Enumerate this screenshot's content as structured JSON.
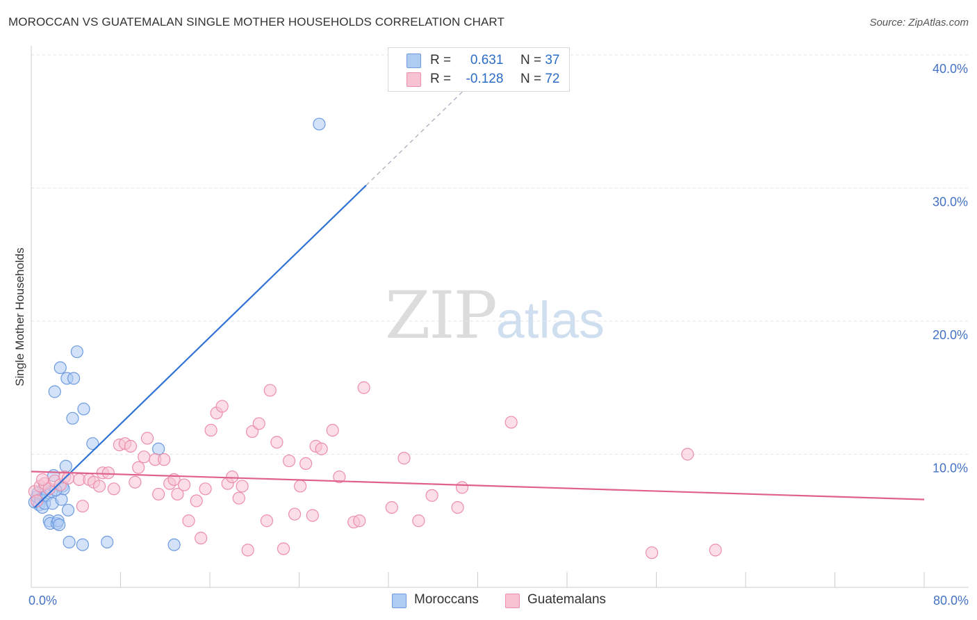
{
  "header": {
    "title": "MOROCCAN VS GUATEMALAN SINGLE MOTHER HOUSEHOLDS CORRELATION CHART",
    "source": "Source: ZipAtlas.com"
  },
  "watermark": {
    "zip": "ZIP",
    "atlas": "atlas"
  },
  "legend": {
    "rows": [
      {
        "r_label": "R =",
        "r_value": "0.631",
        "n_label": "N =",
        "n_value": "37",
        "color": "#aecbf2",
        "border": "#6d9be0"
      },
      {
        "r_label": "R =",
        "r_value": "-0.128",
        "n_label": "N =",
        "n_value": "72",
        "color": "#f7c3d3",
        "border": "#ec8eab"
      }
    ]
  },
  "bottom_legend": {
    "items": [
      {
        "label": "Moroccans",
        "color": "#aecbf2",
        "border": "#6d9be0"
      },
      {
        "label": "Guatemalans",
        "color": "#f7c3d3",
        "border": "#ec8eab"
      }
    ]
  },
  "chart_data": {
    "type": "scatter",
    "title": "MOROCCAN VS GUATEMALAN SINGLE MOTHER HOUSEHOLDS CORRELATION CHART",
    "xlabel": "",
    "ylabel": "Single Mother Households",
    "xlim": [
      0,
      80
    ],
    "ylim": [
      0,
      40
    ],
    "x_tick_labels": [
      {
        "value": 0,
        "label": "0.0%"
      },
      {
        "value": 80,
        "label": "80.0%"
      }
    ],
    "y_tick_labels": [
      {
        "value": 10,
        "label": "10.0%"
      },
      {
        "value": 20,
        "label": "20.0%"
      },
      {
        "value": 30,
        "label": "30.0%"
      },
      {
        "value": 40,
        "label": "40.0%"
      }
    ],
    "grid": true,
    "legend_position": "top-center",
    "series": [
      {
        "name": "Moroccans",
        "color": "#6d9be0",
        "fill": "#aecbf2",
        "trend_color": "#2f72d4",
        "trend": {
          "x0": 0.3,
          "y0": 6.0,
          "x1": 30.0,
          "y1": 30.2,
          "dash_to_x": 40.5
        },
        "points": [
          [
            0.3,
            6.4
          ],
          [
            0.5,
            6.8
          ],
          [
            0.6,
            7.1
          ],
          [
            0.7,
            6.2
          ],
          [
            0.8,
            6.6
          ],
          [
            1.0,
            6.0
          ],
          [
            1.1,
            7.4
          ],
          [
            1.2,
            6.3
          ],
          [
            1.4,
            6.9
          ],
          [
            1.6,
            5.0
          ],
          [
            1.7,
            4.8
          ],
          [
            1.8,
            7.2
          ],
          [
            1.9,
            6.3
          ],
          [
            2.0,
            8.4
          ],
          [
            2.1,
            14.7
          ],
          [
            2.3,
            4.8
          ],
          [
            2.4,
            5.0
          ],
          [
            2.5,
            4.7
          ],
          [
            2.6,
            16.5
          ],
          [
            2.7,
            6.6
          ],
          [
            2.8,
            7.6
          ],
          [
            2.9,
            7.4
          ],
          [
            3.1,
            9.1
          ],
          [
            3.2,
            15.7
          ],
          [
            3.3,
            5.8
          ],
          [
            3.4,
            3.4
          ],
          [
            3.7,
            12.7
          ],
          [
            3.8,
            15.7
          ],
          [
            4.1,
            17.7
          ],
          [
            4.6,
            3.2
          ],
          [
            4.7,
            13.4
          ],
          [
            5.5,
            10.8
          ],
          [
            6.8,
            3.4
          ],
          [
            11.4,
            10.4
          ],
          [
            12.8,
            3.2
          ],
          [
            25.8,
            34.8
          ],
          [
            2.2,
            7.3
          ]
        ]
      },
      {
        "name": "Guatemalans",
        "color": "#ec8eab",
        "fill": "#f7c3d3",
        "trend_color": "#e0608c",
        "trend": {
          "x0": 0,
          "y0": 8.7,
          "x1": 80,
          "y1": 6.6
        },
        "points": [
          [
            0.3,
            7.2
          ],
          [
            0.8,
            7.6
          ],
          [
            1.2,
            7.8
          ],
          [
            1.6,
            7.4
          ],
          [
            2.1,
            8.0
          ],
          [
            2.6,
            7.7
          ],
          [
            3.0,
            8.3
          ],
          [
            3.3,
            8.2
          ],
          [
            4.3,
            8.1
          ],
          [
            4.6,
            6.1
          ],
          [
            5.2,
            8.1
          ],
          [
            5.6,
            7.9
          ],
          [
            6.1,
            7.6
          ],
          [
            6.4,
            8.6
          ],
          [
            6.9,
            8.6
          ],
          [
            7.4,
            7.4
          ],
          [
            7.9,
            10.7
          ],
          [
            8.4,
            10.8
          ],
          [
            8.9,
            10.6
          ],
          [
            9.3,
            7.9
          ],
          [
            9.6,
            9.0
          ],
          [
            10.1,
            9.8
          ],
          [
            10.4,
            11.2
          ],
          [
            11.1,
            9.6
          ],
          [
            11.4,
            7.0
          ],
          [
            11.9,
            9.6
          ],
          [
            12.4,
            7.8
          ],
          [
            12.8,
            8.1
          ],
          [
            13.1,
            7.0
          ],
          [
            13.7,
            7.7
          ],
          [
            14.1,
            5.0
          ],
          [
            14.8,
            6.5
          ],
          [
            15.2,
            3.7
          ],
          [
            15.6,
            7.4
          ],
          [
            16.1,
            11.8
          ],
          [
            16.6,
            13.1
          ],
          [
            17.1,
            13.6
          ],
          [
            17.6,
            7.8
          ],
          [
            18.0,
            8.3
          ],
          [
            18.6,
            6.7
          ],
          [
            18.9,
            7.6
          ],
          [
            19.4,
            2.8
          ],
          [
            19.8,
            11.7
          ],
          [
            20.4,
            12.3
          ],
          [
            21.1,
            5.0
          ],
          [
            21.4,
            14.8
          ],
          [
            22.0,
            10.9
          ],
          [
            22.6,
            2.9
          ],
          [
            23.1,
            9.5
          ],
          [
            23.6,
            5.5
          ],
          [
            24.1,
            7.6
          ],
          [
            24.6,
            9.3
          ],
          [
            25.2,
            5.4
          ],
          [
            25.5,
            10.6
          ],
          [
            26.0,
            10.4
          ],
          [
            27.0,
            11.8
          ],
          [
            27.6,
            8.3
          ],
          [
            28.9,
            4.9
          ],
          [
            29.4,
            5.0
          ],
          [
            29.8,
            15.0
          ],
          [
            32.3,
            6.0
          ],
          [
            33.4,
            9.7
          ],
          [
            34.7,
            5.0
          ],
          [
            35.9,
            6.9
          ],
          [
            38.2,
            6.0
          ],
          [
            38.6,
            7.5
          ],
          [
            43.0,
            12.4
          ],
          [
            55.6,
            2.6
          ],
          [
            58.8,
            10.0
          ],
          [
            61.3,
            2.8
          ],
          [
            0.5,
            6.5
          ],
          [
            1.0,
            8.1
          ]
        ]
      }
    ]
  }
}
